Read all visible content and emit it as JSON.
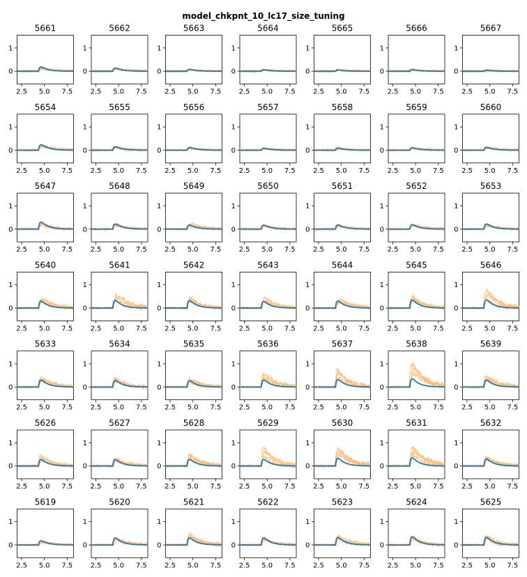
{
  "chart_data": {
    "type": "line",
    "title": "model_chkpnt_10_lc17_size_tuning",
    "layout": {
      "rows": 7,
      "cols": 7
    },
    "xlim": [
      2.0,
      8.2
    ],
    "ylim": [
      -0.55,
      1.55
    ],
    "xticks": [
      2.5,
      5.0,
      7.5
    ],
    "xtick_labels": [
      "2.5",
      "5.0",
      "7.5"
    ],
    "yticks": [
      0,
      1
    ],
    "ytick_labels": [
      "0",
      "1"
    ],
    "colors": {
      "model": "#1f77b4",
      "trials": "#ffbb78"
    },
    "panels": [
      {
        "label": "5661",
        "model_peak": 0.18,
        "trial_peaks": [
          0.12,
          0.1,
          0.16
        ]
      },
      {
        "label": "5662",
        "model_peak": 0.13,
        "trial_peaks": [
          0.1,
          0.12,
          0.08
        ]
      },
      {
        "label": "5663",
        "model_peak": 0.08,
        "trial_peaks": [
          0.05,
          0.07,
          0.04
        ]
      },
      {
        "label": "5664",
        "model_peak": 0.06,
        "trial_peaks": [
          0.05,
          0.04,
          0.06
        ]
      },
      {
        "label": "5665",
        "model_peak": 0.05,
        "trial_peaks": [
          0.04,
          0.06,
          0.03
        ]
      },
      {
        "label": "5666",
        "model_peak": 0.07,
        "trial_peaks": [
          0.05,
          0.04,
          0.06
        ]
      },
      {
        "label": "5667",
        "model_peak": 0.04,
        "trial_peaks": [
          0.03,
          0.05,
          0.02
        ]
      },
      {
        "label": "5654",
        "model_peak": 0.23,
        "trial_peaks": [
          0.18,
          0.22,
          0.14
        ]
      },
      {
        "label": "5655",
        "model_peak": 0.14,
        "trial_peaks": [
          0.12,
          0.1,
          0.15
        ]
      },
      {
        "label": "5656",
        "model_peak": 0.11,
        "trial_peaks": [
          0.08,
          0.1,
          0.07
        ]
      },
      {
        "label": "5657",
        "model_peak": 0.08,
        "trial_peaks": [
          0.06,
          0.05,
          0.07
        ]
      },
      {
        "label": "5658",
        "model_peak": 0.09,
        "trial_peaks": [
          0.07,
          0.05,
          0.08
        ]
      },
      {
        "label": "5659",
        "model_peak": 0.1,
        "trial_peaks": [
          0.08,
          0.07,
          0.09
        ]
      },
      {
        "label": "5660",
        "model_peak": 0.12,
        "trial_peaks": [
          0.1,
          0.08,
          0.13
        ]
      },
      {
        "label": "5647",
        "model_peak": 0.3,
        "trial_peaks": [
          0.22,
          0.25,
          0.18
        ]
      },
      {
        "label": "5648",
        "model_peak": 0.22,
        "trial_peaks": [
          0.18,
          0.2,
          0.15
        ]
      },
      {
        "label": "5649",
        "model_peak": 0.18,
        "trial_peaks": [
          0.24,
          0.15,
          0.12
        ]
      },
      {
        "label": "5650",
        "model_peak": 0.17,
        "trial_peaks": [
          0.13,
          0.15,
          0.11
        ]
      },
      {
        "label": "5651",
        "model_peak": 0.18,
        "trial_peaks": [
          0.14,
          0.12,
          0.16
        ]
      },
      {
        "label": "5652",
        "model_peak": 0.19,
        "trial_peaks": [
          0.15,
          0.18,
          0.12
        ]
      },
      {
        "label": "5653",
        "model_peak": 0.22,
        "trial_peaks": [
          0.15,
          0.18,
          0.12
        ]
      },
      {
        "label": "5640",
        "model_peak": 0.3,
        "trial_peaks": [
          0.4,
          0.3,
          0.25
        ]
      },
      {
        "label": "5641",
        "model_peak": 0.33,
        "trial_peaks": [
          0.55,
          0.42,
          0.3
        ]
      },
      {
        "label": "5642",
        "model_peak": 0.32,
        "trial_peaks": [
          0.45,
          0.35,
          0.28
        ]
      },
      {
        "label": "5643",
        "model_peak": 0.28,
        "trial_peaks": [
          0.42,
          0.3,
          0.25
        ]
      },
      {
        "label": "5644",
        "model_peak": 0.3,
        "trial_peaks": [
          0.35,
          0.28,
          0.22
        ]
      },
      {
        "label": "5645",
        "model_peak": 0.35,
        "trial_peaks": [
          0.5,
          0.42,
          0.3
        ]
      },
      {
        "label": "5646",
        "model_peak": 0.35,
        "trial_peaks": [
          0.75,
          0.55,
          0.4
        ]
      },
      {
        "label": "5633",
        "model_peak": 0.3,
        "trial_peaks": [
          0.38,
          0.3,
          0.25
        ]
      },
      {
        "label": "5634",
        "model_peak": 0.28,
        "trial_peaks": [
          0.4,
          0.3,
          0.25
        ]
      },
      {
        "label": "5635",
        "model_peak": 0.27,
        "trial_peaks": [
          0.35,
          0.28,
          0.2
        ]
      },
      {
        "label": "5636",
        "model_peak": 0.3,
        "trial_peaks": [
          0.55,
          0.4,
          0.3
        ]
      },
      {
        "label": "5637",
        "model_peak": 0.32,
        "trial_peaks": [
          0.72,
          0.55,
          0.4
        ]
      },
      {
        "label": "5638",
        "model_peak": 0.35,
        "trial_peaks": [
          0.95,
          0.78,
          0.55
        ]
      },
      {
        "label": "5639",
        "model_peak": 0.3,
        "trial_peaks": [
          0.45,
          0.35,
          0.28
        ]
      },
      {
        "label": "5626",
        "model_peak": 0.28,
        "trial_peaks": [
          0.45,
          0.35,
          0.25
        ]
      },
      {
        "label": "5627",
        "model_peak": 0.27,
        "trial_peaks": [
          0.3,
          0.25,
          0.2
        ]
      },
      {
        "label": "5628",
        "model_peak": 0.28,
        "trial_peaks": [
          0.45,
          0.35,
          0.3
        ]
      },
      {
        "label": "5629",
        "model_peak": 0.28,
        "trial_peaks": [
          0.8,
          0.6,
          0.4
        ]
      },
      {
        "label": "5630",
        "model_peak": 0.33,
        "trial_peaks": [
          0.72,
          0.6,
          0.45
        ]
      },
      {
        "label": "5631",
        "model_peak": 0.35,
        "trial_peaks": [
          0.8,
          0.6,
          0.45
        ]
      },
      {
        "label": "5632",
        "model_peak": 0.3,
        "trial_peaks": [
          0.4,
          0.32,
          0.25
        ]
      },
      {
        "label": "5619",
        "model_peak": 0.18,
        "trial_peaks": [
          0.15,
          0.12,
          0.1
        ]
      },
      {
        "label": "5620",
        "model_peak": 0.3,
        "trial_peaks": [
          0.28,
          0.22,
          0.2
        ]
      },
      {
        "label": "5621",
        "model_peak": 0.3,
        "trial_peaks": [
          0.45,
          0.35,
          0.3
        ]
      },
      {
        "label": "5622",
        "model_peak": 0.3,
        "trial_peaks": [
          0.3,
          0.25,
          0.2
        ]
      },
      {
        "label": "5623",
        "model_peak": 0.32,
        "trial_peaks": [
          0.38,
          0.3,
          0.25
        ]
      },
      {
        "label": "5624",
        "model_peak": 0.35,
        "trial_peaks": [
          0.35,
          0.3,
          0.25
        ]
      },
      {
        "label": "5625",
        "model_peak": 0.33,
        "trial_peaks": [
          0.38,
          0.3,
          0.25
        ]
      }
    ]
  }
}
